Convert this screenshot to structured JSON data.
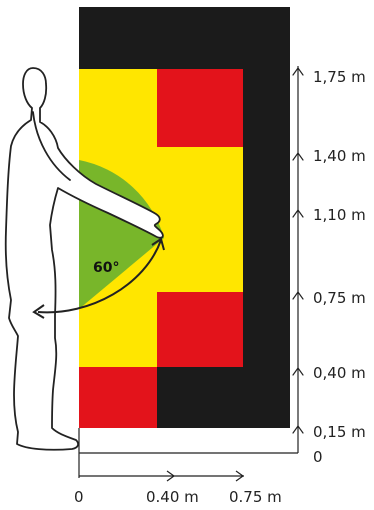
{
  "colors": {
    "black": "#1b1b1b",
    "yellow": "#ffe600",
    "red": "#e3131b",
    "green": "#78b62a",
    "line": "#222222"
  },
  "angle_label": "60°",
  "height_labels": [
    "1,75 m",
    "1,40 m",
    "1,10 m",
    "0,75 m",
    "0,40 m",
    "0,15 m",
    "0"
  ],
  "reach_labels": [
    "0",
    "0.40 m",
    "0.75 m"
  ],
  "icons": [
    "human-silhouette-icon",
    "up-arrow-icon",
    "right-arrow-icon"
  ]
}
